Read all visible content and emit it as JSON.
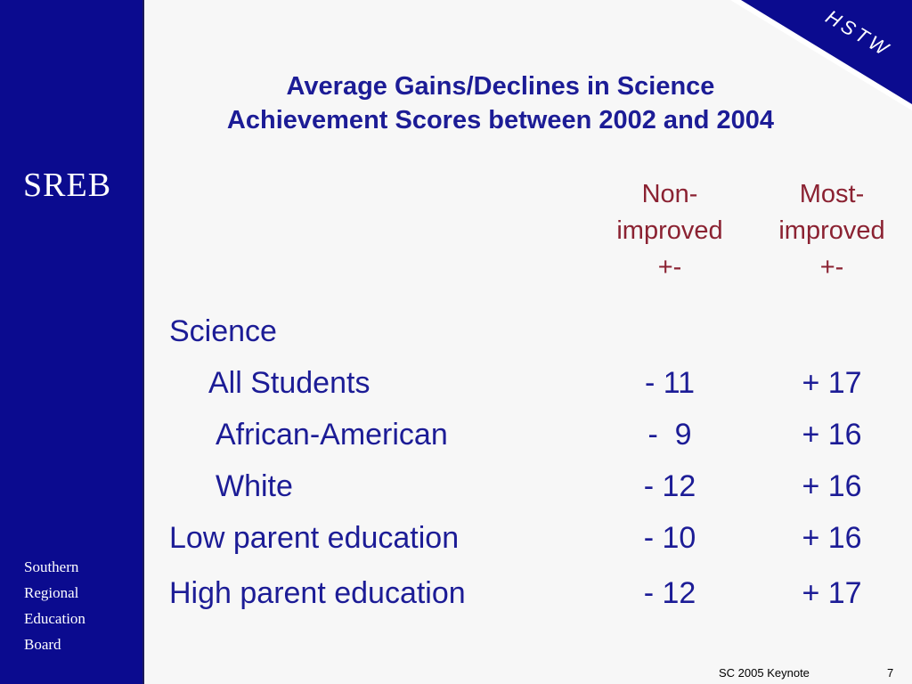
{
  "sidebar": {
    "logo_text": "SREB",
    "org_lines": [
      "Southern",
      "Regional",
      "Education",
      "Board"
    ]
  },
  "corner_badge": {
    "text": "HSTW"
  },
  "title": {
    "line1": "Average Gains/Declines in Science",
    "line2": "Achievement Scores between 2002 and 2004"
  },
  "columns": [
    {
      "line1": "Non-",
      "line2": "improved",
      "line3": "+-"
    },
    {
      "line1": "Most-",
      "line2": "improved",
      "line3": "+-"
    }
  ],
  "rows": [
    {
      "label": "Science",
      "non_improved": "",
      "most_improved": ""
    },
    {
      "label": "All Students",
      "non_improved": "- 11",
      "most_improved": "+ 17"
    },
    {
      "label": "African-American",
      "non_improved": "-  9",
      "most_improved": "+ 16"
    },
    {
      "label": "White",
      "non_improved": "- 12",
      "most_improved": "+ 16"
    },
    {
      "label": "Low parent education",
      "non_improved": "- 10",
      "most_improved": "+ 16"
    },
    {
      "label": "High parent education",
      "non_improved": "- 12",
      "most_improved": "+ 17"
    }
  ],
  "footer": {
    "left": "SC 2005 Keynote",
    "page": "7"
  }
}
